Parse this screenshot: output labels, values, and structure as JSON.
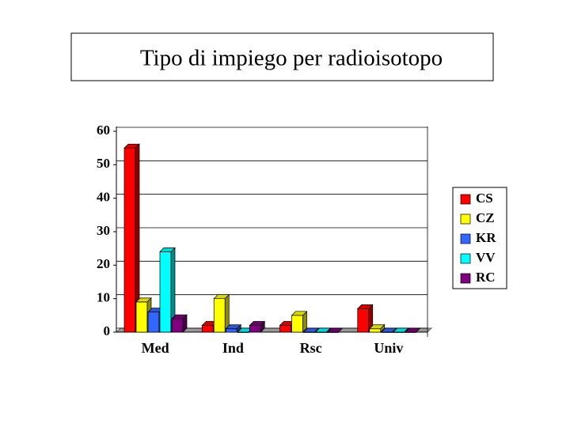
{
  "chart_data": {
    "type": "bar3d",
    "title": "Tipo di impiego per radioisotopo",
    "categories": [
      "Med",
      "Ind",
      "Rsc",
      "Univ"
    ],
    "series": [
      {
        "name": "CS",
        "color": "#ff0000",
        "values": [
          55,
          2,
          2,
          7
        ]
      },
      {
        "name": "CZ",
        "color": "#ffff00",
        "values": [
          9,
          10,
          5,
          1
        ]
      },
      {
        "name": "KR",
        "color": "#3366ff",
        "values": [
          6,
          1,
          0,
          0
        ]
      },
      {
        "name": "VV",
        "color": "#00ffff",
        "values": [
          24,
          0,
          0,
          0
        ]
      },
      {
        "name": "RC",
        "color": "#800080",
        "values": [
          4,
          2,
          0,
          0
        ]
      }
    ],
    "ylim": [
      0,
      60
    ],
    "yticks": [
      0,
      10,
      20,
      30,
      40,
      50,
      60
    ],
    "grid": true,
    "legend": "right"
  }
}
